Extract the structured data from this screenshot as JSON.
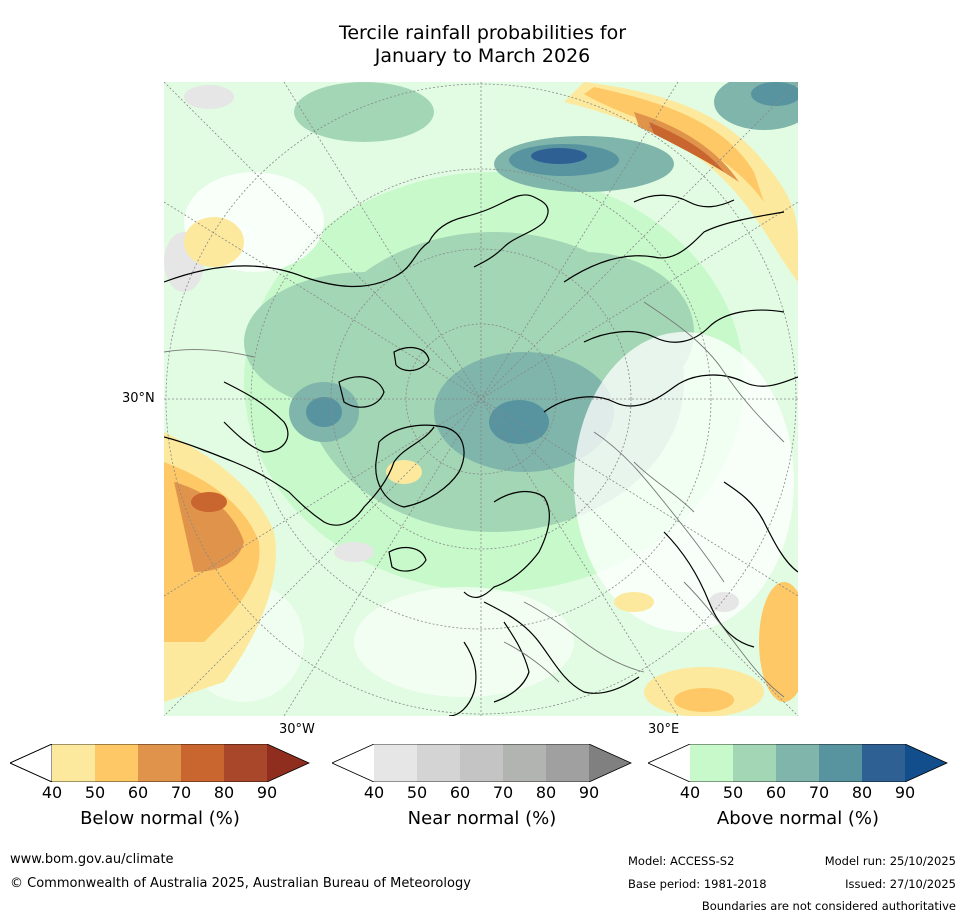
{
  "title": {
    "line1": "Tercile rainfall probabilities for",
    "line2": "January to March 2026"
  },
  "map": {
    "lat_label": "30°N",
    "lon_label_west": "30°W",
    "lon_label_east": "30°E"
  },
  "colorbars": [
    {
      "caption": "Below normal (%)",
      "ticks": [
        "40",
        "50",
        "60",
        "70",
        "80",
        "90"
      ],
      "colors": [
        "#ffffff",
        "#fde99d",
        "#fdc865",
        "#e0944b",
        "#c9652e",
        "#a9472a",
        "#8f2e1f"
      ]
    },
    {
      "caption": "Near normal (%)",
      "ticks": [
        "40",
        "50",
        "60",
        "70",
        "80",
        "90"
      ],
      "colors": [
        "#ffffff",
        "#e6e6e6",
        "#d4d4d4",
        "#c4c4c4",
        "#b2b4b1",
        "#a0a0a0",
        "#808080"
      ]
    },
    {
      "caption": "Above normal (%)",
      "ticks": [
        "40",
        "50",
        "60",
        "70",
        "80",
        "90"
      ],
      "colors": [
        "#ffffff",
        "#c8f9cb",
        "#a3d6b5",
        "#7fb5aa",
        "#5894a0",
        "#2f6094",
        "#124e8c"
      ]
    }
  ],
  "footer": {
    "url": "www.bom.gov.au/climate",
    "copyright": "© Commonwealth of Australia 2025, Australian Bureau of Meteorology",
    "model": "Model: ACCESS-S2",
    "base_period": "Base period: 1981-2018",
    "model_run": "Model run: 25/10/2025",
    "issued": "Issued: 27/10/2025",
    "disclaimer": "Boundaries are not considered authoritative"
  }
}
